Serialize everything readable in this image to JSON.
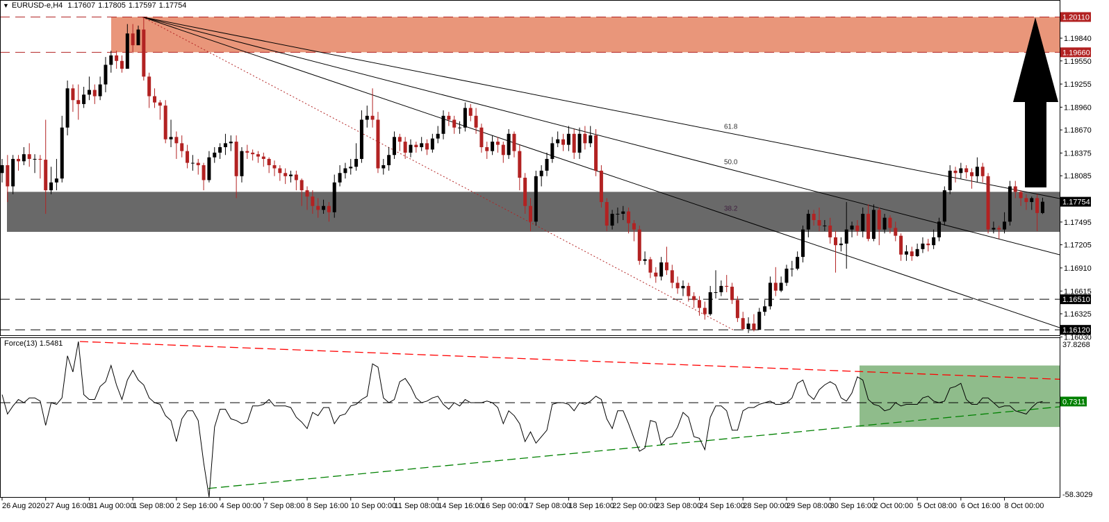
{
  "header": {
    "symbol": "EURUSD-e,H4",
    "open": "1.17607",
    "high": "1.17805",
    "low": "1.17597",
    "close": "1.17754"
  },
  "indicator": {
    "label": "Force(13)",
    "value": "1.5481",
    "axis_max": "37.8268",
    "axis_min": "-58.3029",
    "current": "0.7311",
    "current_color": "#008000"
  },
  "price_axis": {
    "ticks": [
      "1.19840",
      "1.19550",
      "1.19255",
      "1.18960",
      "1.18670",
      "1.18375",
      "1.18085",
      "1.17495",
      "1.17205",
      "1.16910",
      "1.16615",
      "1.16325",
      "1.16030"
    ],
    "levels": [
      {
        "value": "1.20110",
        "bg": "#B22222"
      },
      {
        "value": "1.19660",
        "bg": "#B22222"
      },
      {
        "value": "1.17754",
        "bg": "#000000"
      },
      {
        "value": "1.16510",
        "bg": "#000000"
      },
      {
        "value": "1.16120",
        "bg": "#000000"
      }
    ]
  },
  "zones": {
    "resistance": {
      "top": 1.2011,
      "bottom": 1.1966,
      "color": "#E9967A"
    },
    "support": {
      "top": 1.1788,
      "bottom": 1.1737,
      "color": "#696969"
    },
    "support_levels": [
      1.1651,
      1.1612
    ]
  },
  "fib_fan": {
    "labels": [
      "61.8",
      "50.0",
      "38.2"
    ]
  },
  "colors": {
    "bull": "#000000",
    "bear": "#B22222",
    "force_upper_trend": "#FF0000",
    "force_lower_trend": "#008000",
    "force_box": "#8FBC8B"
  },
  "time_axis": [
    "26 Aug 2020",
    "27 Aug 16:00",
    "31 Aug 00:00",
    "1 Sep 08:00",
    "2 Sep 16:00",
    "4 Sep 00:00",
    "7 Sep 08:00",
    "8 Sep 16:00",
    "10 Sep 00:00",
    "11 Sep 08:00",
    "14 Sep 16:00",
    "16 Sep 00:00",
    "17 Sep 08:00",
    "18 Sep 16:00",
    "22 Sep 00:00",
    "23 Sep 08:00",
    "24 Sep 16:00",
    "28 Sep 00:00",
    "29 Sep 08:00",
    "30 Sep 16:00",
    "2 Oct 00:00",
    "5 Oct 08:00",
    "6 Oct 16:00",
    "8 Oct 00:00"
  ],
  "chart_data": {
    "type": "candlestick",
    "timeframe": "H4",
    "ylim": [
      1.1603,
      1.2011
    ],
    "first_open": 1.1812,
    "candles_hlc": [
      [
        1.183,
        1.18,
        1.1822
      ],
      [
        1.1835,
        1.1775,
        1.1795
      ],
      [
        1.1835,
        1.1785,
        1.183
      ],
      [
        1.1835,
        1.1815,
        1.1827
      ],
      [
        1.1845,
        1.1822,
        1.1836
      ],
      [
        1.185,
        1.182,
        1.183
      ],
      [
        1.1836,
        1.1812,
        1.183
      ],
      [
        1.1835,
        1.1805,
        1.1829
      ],
      [
        1.188,
        1.176,
        1.179
      ],
      [
        1.182,
        1.1785,
        1.18
      ],
      [
        1.183,
        1.179,
        1.1805
      ],
      [
        1.1885,
        1.18,
        1.187
      ],
      [
        1.193,
        1.186,
        1.192
      ],
      [
        1.1925,
        1.189,
        1.1905
      ],
      [
        1.1925,
        1.188,
        1.19
      ],
      [
        1.1922,
        1.1895,
        1.1912
      ],
      [
        1.1935,
        1.1905,
        1.1918
      ],
      [
        1.1925,
        1.19,
        1.191
      ],
      [
        1.1935,
        1.1905,
        1.1925
      ],
      [
        1.196,
        1.1915,
        1.195
      ],
      [
        1.1968,
        1.194,
        1.1962
      ],
      [
        1.1968,
        1.1945,
        1.1955
      ],
      [
        1.1962,
        1.194,
        1.1945
      ],
      [
        1.2002,
        1.1945,
        1.199
      ],
      [
        1.2002,
        1.1965,
        1.1975
      ],
      [
        1.2,
        1.198,
        1.1995
      ],
      [
        1.2011,
        1.193,
        1.1935
      ],
      [
        1.194,
        1.1895,
        1.191
      ],
      [
        1.192,
        1.1895,
        1.1902
      ],
      [
        1.1905,
        1.188,
        1.1898
      ],
      [
        1.1905,
        1.185,
        1.1855
      ],
      [
        1.188,
        1.1845,
        1.1858
      ],
      [
        1.1865,
        1.183,
        1.185
      ],
      [
        1.186,
        1.1832,
        1.184
      ],
      [
        1.1848,
        1.1818,
        1.1825
      ],
      [
        1.1835,
        1.1815,
        1.1825
      ],
      [
        1.183,
        1.181,
        1.1822
      ],
      [
        1.1825,
        1.179,
        1.1803
      ],
      [
        1.184,
        1.18,
        1.1832
      ],
      [
        1.1845,
        1.1825,
        1.1838
      ],
      [
        1.185,
        1.183,
        1.1845
      ],
      [
        1.1862,
        1.1835,
        1.185
      ],
      [
        1.186,
        1.184,
        1.1852
      ],
      [
        1.186,
        1.178,
        1.1808
      ],
      [
        1.1845,
        1.18,
        1.184
      ],
      [
        1.1848,
        1.183,
        1.1838
      ],
      [
        1.1842,
        1.1828,
        1.1836
      ],
      [
        1.184,
        1.1825,
        1.1833
      ],
      [
        1.1838,
        1.182,
        1.183
      ],
      [
        1.1832,
        1.1812,
        1.1822
      ],
      [
        1.1828,
        1.1808,
        1.1818
      ],
      [
        1.1822,
        1.1802,
        1.1812
      ],
      [
        1.1818,
        1.1798,
        1.1808
      ],
      [
        1.1815,
        1.18,
        1.181
      ],
      [
        1.1815,
        1.179,
        1.1803
      ],
      [
        1.1805,
        1.177,
        1.179
      ],
      [
        1.1795,
        1.1765,
        1.1782
      ],
      [
        1.179,
        1.176,
        1.177
      ],
      [
        1.178,
        1.1755,
        1.1765
      ],
      [
        1.1778,
        1.176,
        1.177
      ],
      [
        1.1775,
        1.175,
        1.1762
      ],
      [
        1.181,
        1.1755,
        1.18
      ],
      [
        1.1822,
        1.1795,
        1.1812
      ],
      [
        1.1825,
        1.1805,
        1.1818
      ],
      [
        1.183,
        1.181,
        1.182
      ],
      [
        1.185,
        1.1815,
        1.183
      ],
      [
        1.1892,
        1.1825,
        1.188
      ],
      [
        1.1898,
        1.187,
        1.1885
      ],
      [
        1.192,
        1.187,
        1.188
      ],
      [
        1.189,
        1.1812,
        1.1818
      ],
      [
        1.183,
        1.181,
        1.1822
      ],
      [
        1.1845,
        1.1815,
        1.1835
      ],
      [
        1.1865,
        1.183,
        1.1858
      ],
      [
        1.1862,
        1.184,
        1.1852
      ],
      [
        1.1858,
        1.183,
        1.1838
      ],
      [
        1.1855,
        1.1832,
        1.1848
      ],
      [
        1.1852,
        1.1838,
        1.1845
      ],
      [
        1.1858,
        1.184,
        1.185
      ],
      [
        1.1855,
        1.1835,
        1.1842
      ],
      [
        1.1862,
        1.1838,
        1.1856
      ],
      [
        1.1872,
        1.185,
        1.1862
      ],
      [
        1.1892,
        1.1855,
        1.1885
      ],
      [
        1.189,
        1.1872,
        1.188
      ],
      [
        1.1885,
        1.1862,
        1.187
      ],
      [
        1.1878,
        1.1862,
        1.187
      ],
      [
        1.1902,
        1.1865,
        1.1895
      ],
      [
        1.19,
        1.1878,
        1.1885
      ],
      [
        1.1895,
        1.1862,
        1.187
      ],
      [
        1.1875,
        1.1838,
        1.1845
      ],
      [
        1.1852,
        1.183,
        1.184
      ],
      [
        1.186,
        1.1835,
        1.1852
      ],
      [
        1.1858,
        1.1838,
        1.1848
      ],
      [
        1.1852,
        1.1825,
        1.1835
      ],
      [
        1.1868,
        1.183,
        1.1862
      ],
      [
        1.1865,
        1.1832,
        1.184
      ],
      [
        1.1848,
        1.179,
        1.1806
      ],
      [
        1.1812,
        1.176,
        1.177
      ],
      [
        1.178,
        1.1738,
        1.175
      ],
      [
        1.1815,
        1.1745,
        1.1808
      ],
      [
        1.1822,
        1.1795,
        1.1815
      ],
      [
        1.1838,
        1.1808,
        1.183
      ],
      [
        1.1858,
        1.1825,
        1.185
      ],
      [
        1.1865,
        1.1845,
        1.1855
      ],
      [
        1.1862,
        1.184,
        1.1848
      ],
      [
        1.1872,
        1.184,
        1.1862
      ],
      [
        1.1868,
        1.183,
        1.1838
      ],
      [
        1.187,
        1.183,
        1.1862
      ],
      [
        1.1872,
        1.1842,
        1.185
      ],
      [
        1.1872,
        1.1845,
        1.186
      ],
      [
        1.1868,
        1.1808,
        1.1815
      ],
      [
        1.1822,
        1.1768,
        1.1775
      ],
      [
        1.178,
        1.1738,
        1.1745
      ],
      [
        1.1765,
        1.174,
        1.176
      ],
      [
        1.1768,
        1.1748,
        1.176
      ],
      [
        1.177,
        1.1752,
        1.1763
      ],
      [
        1.1768,
        1.1735,
        1.1748
      ],
      [
        1.1752,
        1.1725,
        1.174
      ],
      [
        1.1745,
        1.1695,
        1.17
      ],
      [
        1.1712,
        1.1695,
        1.1702
      ],
      [
        1.1705,
        1.1678,
        1.1685
      ],
      [
        1.1692,
        1.1672,
        1.168
      ],
      [
        1.1705,
        1.1675,
        1.1698
      ],
      [
        1.1718,
        1.1682,
        1.1688
      ],
      [
        1.1695,
        1.1665,
        1.1672
      ],
      [
        1.168,
        1.1658,
        1.1665
      ],
      [
        1.1675,
        1.1655,
        1.1668
      ],
      [
        1.1672,
        1.1648,
        1.1655
      ],
      [
        1.166,
        1.164,
        1.165
      ],
      [
        1.1655,
        1.163,
        1.164
      ],
      [
        1.1648,
        1.1625,
        1.1632
      ],
      [
        1.1668,
        1.163,
        1.166
      ],
      [
        1.1688,
        1.1652,
        1.166
      ],
      [
        1.1675,
        1.1655,
        1.1668
      ],
      [
        1.1682,
        1.166,
        1.1667
      ],
      [
        1.1672,
        1.1645,
        1.165
      ],
      [
        1.1655,
        1.1622,
        1.1627
      ],
      [
        1.1635,
        1.1612,
        1.1613
      ],
      [
        1.1628,
        1.1608,
        1.162
      ],
      [
        1.1632,
        1.161,
        1.1612
      ],
      [
        1.164,
        1.1612,
        1.1635
      ],
      [
        1.165,
        1.163,
        1.1642
      ],
      [
        1.168,
        1.1638,
        1.1672
      ],
      [
        1.1692,
        1.1655,
        1.1662
      ],
      [
        1.168,
        1.166,
        1.1672
      ],
      [
        1.1695,
        1.1668,
        1.169
      ],
      [
        1.17,
        1.168,
        1.169
      ],
      [
        1.1712,
        1.1688,
        1.1705
      ],
      [
        1.1745,
        1.1698,
        1.174
      ],
      [
        1.1765,
        1.173,
        1.176
      ],
      [
        1.1765,
        1.1745,
        1.1752
      ],
      [
        1.1768,
        1.1738,
        1.1745
      ],
      [
        1.1752,
        1.1738,
        1.1745
      ],
      [
        1.1755,
        1.1722,
        1.173
      ],
      [
        1.1738,
        1.1685,
        1.172
      ],
      [
        1.173,
        1.1712,
        1.1722
      ],
      [
        1.1775,
        1.169,
        1.174
      ],
      [
        1.175,
        1.173,
        1.1745
      ],
      [
        1.1752,
        1.1732,
        1.1738
      ],
      [
        1.1768,
        1.173,
        1.176
      ],
      [
        1.1772,
        1.1725,
        1.1728
      ],
      [
        1.1772,
        1.1725,
        1.1765
      ],
      [
        1.1768,
        1.172,
        1.174
      ],
      [
        1.176,
        1.1735,
        1.1755
      ],
      [
        1.1758,
        1.1735,
        1.1742
      ],
      [
        1.175,
        1.1725,
        1.1732
      ],
      [
        1.1735,
        1.17,
        1.1708
      ],
      [
        1.172,
        1.17,
        1.1712
      ],
      [
        1.1718,
        1.17,
        1.1706
      ],
      [
        1.1722,
        1.1705,
        1.1715
      ],
      [
        1.173,
        1.171,
        1.1722
      ],
      [
        1.1728,
        1.1712,
        1.172
      ],
      [
        1.174,
        1.1715,
        1.173
      ],
      [
        1.1755,
        1.1725,
        1.175
      ],
      [
        1.1795,
        1.1745,
        1.179
      ],
      [
        1.1822,
        1.1785,
        1.1815
      ],
      [
        1.182,
        1.18,
        1.1812
      ],
      [
        1.1825,
        1.1805,
        1.1818
      ],
      [
        1.1822,
        1.1805,
        1.1813
      ],
      [
        1.1818,
        1.1792,
        1.1808
      ],
      [
        1.1832,
        1.18,
        1.182
      ],
      [
        1.1825,
        1.18,
        1.1808
      ],
      [
        1.1812,
        1.1735,
        1.174
      ],
      [
        1.175,
        1.1735,
        1.1742
      ],
      [
        1.1745,
        1.1728,
        1.174
      ],
      [
        1.1762,
        1.1735,
        1.175
      ],
      [
        1.1802,
        1.1745,
        1.1795
      ],
      [
        1.1802,
        1.178,
        1.1788
      ],
      [
        1.179,
        1.177,
        1.178
      ],
      [
        1.1785,
        1.1765,
        1.1775
      ],
      [
        1.1782,
        1.1765,
        1.178
      ],
      [
        1.1785,
        1.1738,
        1.1761
      ],
      [
        1.17805,
        1.17597,
        1.17754
      ]
    ],
    "force": {
      "ylim": [
        -58.3029,
        37.8268
      ],
      "values": [
        5,
        -7,
        -2,
        2,
        0,
        3,
        3,
        1,
        -14,
        0,
        -1,
        3,
        29,
        19,
        37.8,
        5,
        2,
        2,
        10,
        13,
        23,
        11,
        2,
        14,
        20,
        14,
        11,
        3,
        0,
        -1,
        -8,
        -11,
        -24,
        -10,
        -5,
        -5,
        -11,
        -37,
        -58.3,
        -15,
        -4,
        -4,
        -10,
        -11,
        -13,
        -12,
        -2,
        -2,
        -1,
        2,
        -2,
        -2,
        -2,
        -3,
        -9,
        -12,
        -16,
        -6,
        -8,
        -3,
        -3,
        -13,
        -8,
        -7,
        -2,
        -1,
        2,
        4,
        24,
        22,
        3,
        0,
        2,
        13,
        15,
        10,
        3,
        0,
        1,
        3,
        4,
        -1,
        -4,
        0,
        -2,
        2,
        0,
        0,
        0,
        1,
        0,
        -3,
        -13,
        -5,
        -8,
        -13,
        -24,
        -18,
        -25,
        -21,
        -17,
        -1,
        0,
        0,
        -1,
        -5,
        0,
        -1,
        1,
        4,
        2,
        -10,
        -16,
        -5,
        -5,
        -13,
        -22,
        -30,
        -28,
        -11,
        -12,
        -26,
        -22,
        -21,
        -15,
        -6,
        -9,
        -21,
        -22,
        -29,
        -9,
        -2,
        -2,
        -5,
        -17,
        -17,
        -5,
        -3,
        -3,
        -1,
        0,
        1,
        -1,
        -1,
        0,
        3,
        12,
        14,
        5,
        2,
        8,
        11,
        13,
        11,
        3,
        1,
        6,
        16,
        14,
        2,
        -1,
        -2,
        -5,
        -4,
        0,
        -2,
        -1,
        -1,
        -1,
        3,
        4,
        1,
        0,
        1,
        9,
        10,
        12,
        2,
        -1,
        -1,
        3,
        3,
        0,
        -3,
        -2,
        -2,
        -5,
        -6,
        -7,
        -3,
        0,
        0.7311
      ]
    }
  }
}
